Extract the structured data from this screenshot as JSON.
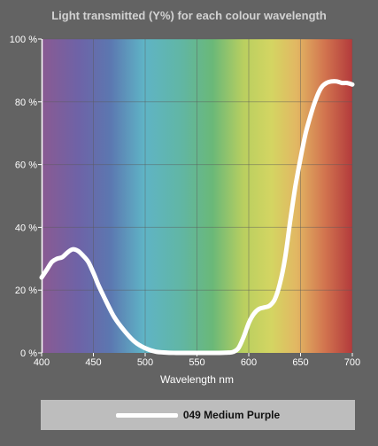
{
  "chart_data": {
    "type": "line",
    "title": "Light transmitted (Y%) for each colour wavelength",
    "xlabel": "Wavelength nm",
    "ylabel": "",
    "xlim": [
      400,
      700
    ],
    "ylim": [
      0,
      100
    ],
    "x_ticks": [
      400,
      450,
      500,
      550,
      600,
      650,
      700
    ],
    "x_tick_labels": [
      "400",
      "450",
      "500",
      "550",
      "600",
      "650",
      "700"
    ],
    "y_ticks": [
      0,
      20,
      40,
      60,
      80,
      100
    ],
    "y_tick_labels": [
      "0 %",
      "20 %",
      "40 %",
      "60 %",
      "80 %",
      "100 %"
    ],
    "grid": true,
    "background": "visible spectrum",
    "legend_position": "bottom",
    "series": [
      {
        "name": "049 Medium Purple",
        "color": "#ffffff",
        "x": [
          400,
          405,
          410,
          415,
          420,
          425,
          430,
          435,
          440,
          445,
          450,
          455,
          460,
          470,
          480,
          490,
          500,
          510,
          520,
          530,
          540,
          550,
          560,
          570,
          580,
          585,
          590,
          595,
          600,
          605,
          610,
          615,
          620,
          625,
          630,
          635,
          640,
          645,
          650,
          655,
          660,
          665,
          670,
          675,
          680,
          685,
          690,
          695,
          700
        ],
        "y": [
          24,
          26.5,
          29,
          30,
          30.5,
          32,
          33,
          32.5,
          31,
          29,
          25.5,
          21.5,
          18,
          11.5,
          7,
          3.5,
          1.5,
          0.4,
          0.1,
          0,
          0,
          0,
          0,
          0,
          0.1,
          0.3,
          1.5,
          5,
          9.5,
          12.5,
          14,
          14.5,
          15,
          17,
          22,
          30,
          42,
          53,
          62,
          70,
          76,
          81,
          84.5,
          86,
          86.5,
          86.5,
          86,
          86,
          85.5
        ]
      }
    ]
  }
}
